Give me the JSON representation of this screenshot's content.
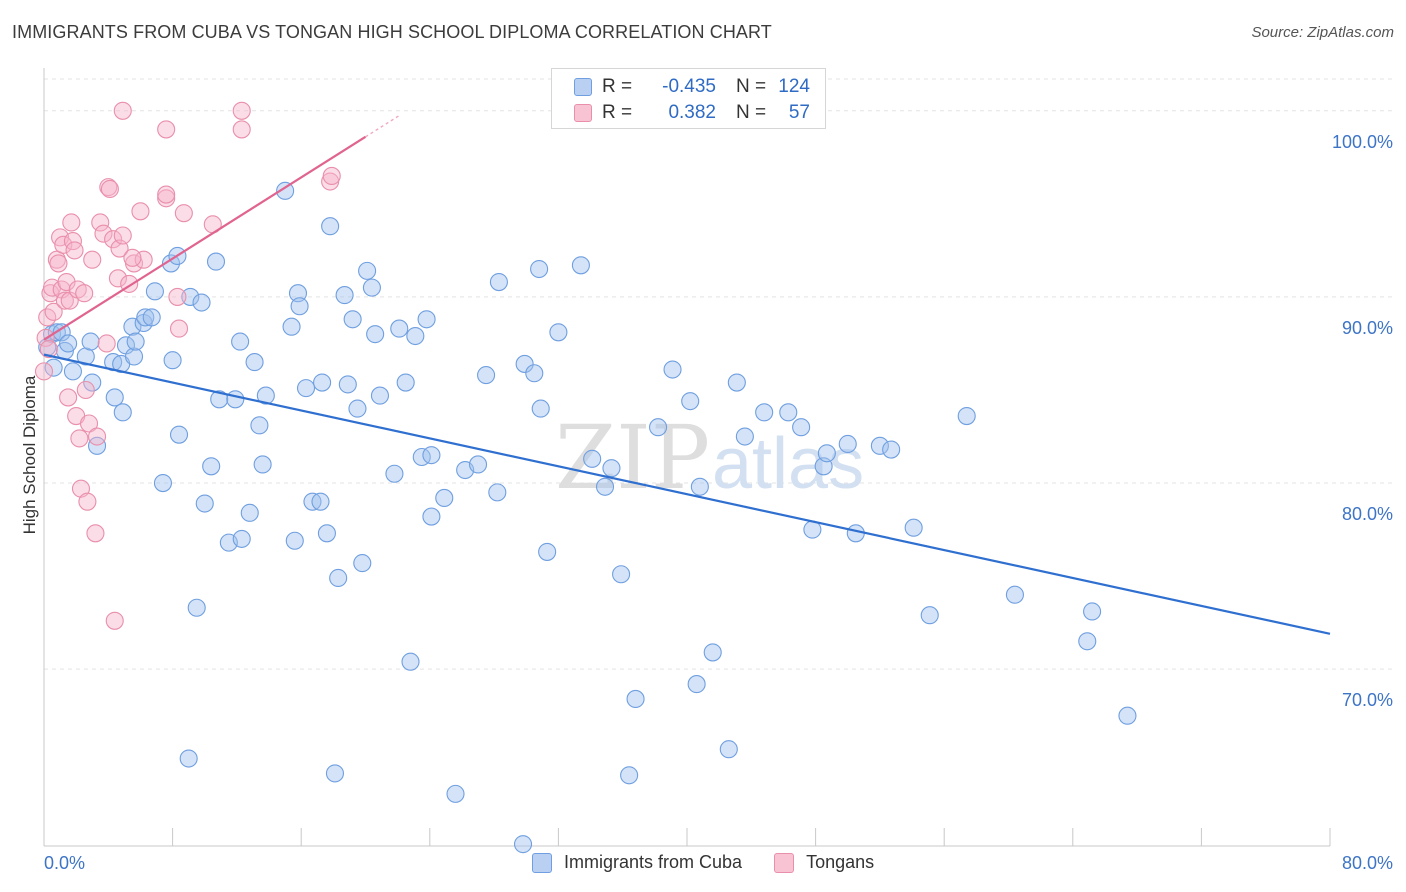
{
  "header": {
    "title": "IMMIGRANTS FROM CUBA VS TONGAN HIGH SCHOOL DIPLOMA CORRELATION CHART",
    "source": "Source: ZipAtlas.com"
  },
  "watermark": {
    "zip": "ZIP",
    "atlas": "atlas"
  },
  "legend": {
    "r_label": "R =",
    "n_label": "N =",
    "rows": [
      {
        "r": "-0.435",
        "n": "124",
        "color": "#6f9fe0",
        "fill": "#b9d0f2"
      },
      {
        "r": "0.382",
        "n": "57",
        "color": "#e98fab",
        "fill": "#f8c4d4"
      }
    ]
  },
  "bottom_legend": [
    {
      "label": "Immigrants from Cuba",
      "color": "#6f9fe0",
      "fill": "#b9d0f2"
    },
    {
      "label": "Tongans",
      "color": "#e98fab",
      "fill": "#f8c4d4"
    }
  ],
  "colors": {
    "blue": "#6f9fe0",
    "blue_line": "#2f6fd0",
    "pink": "#e98fab",
    "pink_line": "#e0648f",
    "tick_text": "#3d74c6"
  },
  "chart_data": {
    "type": "scatter",
    "title": "IMMIGRANTS FROM CUBA VS TONGAN HIGH SCHOOL DIPLOMA CORRELATION CHART",
    "xlabel": "",
    "ylabel": "High School Diploma",
    "xlim": [
      0,
      80
    ],
    "ylim": [
      60.5,
      102.3
    ],
    "x_tick_labels": [
      "0.0%",
      "80.0%"
    ],
    "y_ticks": [
      70,
      80,
      90,
      100
    ],
    "y_tick_labels": [
      "70.0%",
      "80.0%",
      "90.0%",
      "100.0%"
    ],
    "grid": true,
    "legend_position": "top-center",
    "series": [
      {
        "name": "Immigrants from Cuba",
        "trend": {
          "x": [
            0,
            80
          ],
          "y": [
            86.9,
            71.9
          ]
        },
        "points": [
          [
            0.2,
            87.3
          ],
          [
            0.5,
            88
          ],
          [
            0.6,
            86.2
          ],
          [
            0.8,
            88.1
          ],
          [
            1.1,
            88.1
          ],
          [
            1.3,
            87.1
          ],
          [
            1.5,
            87.5
          ],
          [
            1.8,
            86
          ],
          [
            2.6,
            86.8
          ],
          [
            2.9,
            87.6
          ],
          [
            3,
            85.4
          ],
          [
            3.3,
            82
          ],
          [
            4.3,
            86.5
          ],
          [
            4.4,
            84.6
          ],
          [
            4.8,
            86.4
          ],
          [
            4.9,
            83.8
          ],
          [
            5.1,
            87.4
          ],
          [
            5.5,
            88.4
          ],
          [
            5.6,
            86.8
          ],
          [
            5.7,
            87.6
          ],
          [
            6.2,
            88.6
          ],
          [
            6.3,
            88.9
          ],
          [
            6.7,
            88.9
          ],
          [
            6.9,
            90.3
          ],
          [
            7.4,
            80
          ],
          [
            7.9,
            91.8
          ],
          [
            8,
            86.6
          ],
          [
            8.3,
            92.2
          ],
          [
            8.4,
            82.6
          ],
          [
            9.1,
            90
          ],
          [
            9,
            65.2
          ],
          [
            9.5,
            73.3
          ],
          [
            9.8,
            89.7
          ],
          [
            10,
            78.9
          ],
          [
            10.4,
            80.9
          ],
          [
            10.7,
            91.9
          ],
          [
            10.9,
            84.5
          ],
          [
            11.5,
            76.8
          ],
          [
            11.9,
            84.5
          ],
          [
            12.3,
            77
          ],
          [
            12.2,
            87.6
          ],
          [
            12.8,
            78.4
          ],
          [
            13.1,
            86.5
          ],
          [
            13.4,
            83.1
          ],
          [
            13.6,
            81
          ],
          [
            13.8,
            84.7
          ],
          [
            15,
            95.7
          ],
          [
            15.4,
            88.4
          ],
          [
            15.6,
            76.9
          ],
          [
            15.8,
            90.2
          ],
          [
            15.9,
            89.5
          ],
          [
            16.3,
            85.1
          ],
          [
            16.7,
            79
          ],
          [
            17.2,
            79
          ],
          [
            17.3,
            85.4
          ],
          [
            17.6,
            77.3
          ],
          [
            17.8,
            93.8
          ],
          [
            18.1,
            64.4
          ],
          [
            18.3,
            74.9
          ],
          [
            18.7,
            90.1
          ],
          [
            18.9,
            85.3
          ],
          [
            19.2,
            88.8
          ],
          [
            19.5,
            84
          ],
          [
            19.8,
            75.7
          ],
          [
            20.1,
            91.4
          ],
          [
            20.4,
            90.5
          ],
          [
            20.6,
            88
          ],
          [
            20.9,
            84.7
          ],
          [
            21.8,
            80.5
          ],
          [
            22.1,
            88.3
          ],
          [
            22.5,
            85.4
          ],
          [
            22.8,
            70.4
          ],
          [
            23.1,
            87.9
          ],
          [
            23.5,
            81.4
          ],
          [
            23.8,
            88.8
          ],
          [
            24.1,
            78.2
          ],
          [
            24.1,
            81.5
          ],
          [
            24.9,
            79.2
          ],
          [
            25.6,
            63.3
          ],
          [
            26.2,
            80.7
          ],
          [
            27,
            81
          ],
          [
            27.5,
            85.8
          ],
          [
            28.2,
            79.5
          ],
          [
            28.3,
            90.8
          ],
          [
            29.8,
            60.6
          ],
          [
            29.9,
            86.4
          ],
          [
            30.5,
            85.9
          ],
          [
            30.8,
            91.5
          ],
          [
            30.9,
            84
          ],
          [
            31.3,
            76.3
          ],
          [
            32,
            88.1
          ],
          [
            33.4,
            91.7
          ],
          [
            34.1,
            81.3
          ],
          [
            34.9,
            79.8
          ],
          [
            35.3,
            80.8
          ],
          [
            35.9,
            75.1
          ],
          [
            36.4,
            64.3
          ],
          [
            36.8,
            68.4
          ],
          [
            38.2,
            83
          ],
          [
            39.1,
            86.1
          ],
          [
            40.2,
            84.4
          ],
          [
            40.6,
            69.2
          ],
          [
            40.8,
            79.8
          ],
          [
            41.6,
            70.9
          ],
          [
            42.6,
            65.7
          ],
          [
            43.1,
            85.4
          ],
          [
            43.6,
            82.5
          ],
          [
            44.8,
            83.8
          ],
          [
            46.3,
            83.8
          ],
          [
            47.1,
            83
          ],
          [
            47.8,
            77.5
          ],
          [
            48.5,
            80.9
          ],
          [
            48.7,
            81.6
          ],
          [
            50,
            82.1
          ],
          [
            50.5,
            77.3
          ],
          [
            52,
            82
          ],
          [
            52.7,
            81.8
          ],
          [
            54.1,
            77.6
          ],
          [
            55.1,
            72.9
          ],
          [
            57.4,
            83.6
          ],
          [
            60.4,
            74
          ],
          [
            64.9,
            71.5
          ],
          [
            65.2,
            73.1
          ],
          [
            67.4,
            67.5
          ]
        ]
      },
      {
        "name": "Tongans",
        "trend": {
          "x": [
            0,
            20
          ],
          "y": [
            87.7,
            98.6
          ]
        },
        "points": [
          [
            0,
            86
          ],
          [
            0.1,
            87.8
          ],
          [
            0.2,
            88.9
          ],
          [
            0.4,
            90.2
          ],
          [
            0.5,
            90.5
          ],
          [
            0.6,
            89.2
          ],
          [
            0.8,
            92
          ],
          [
            0.9,
            91.8
          ],
          [
            1,
            93.2
          ],
          [
            1.1,
            90.4
          ],
          [
            1.2,
            92.8
          ],
          [
            1.3,
            89.8
          ],
          [
            1.4,
            90.8
          ],
          [
            1.5,
            84.6
          ],
          [
            1.6,
            89.8
          ],
          [
            1.7,
            94
          ],
          [
            1.8,
            93
          ],
          [
            1.9,
            92.5
          ],
          [
            2,
            83.6
          ],
          [
            2.1,
            90.4
          ],
          [
            2.2,
            82.4
          ],
          [
            2.3,
            79.7
          ],
          [
            2.5,
            90.2
          ],
          [
            2.6,
            85
          ],
          [
            2.7,
            79
          ],
          [
            2.8,
            83.2
          ],
          [
            3,
            92
          ],
          [
            3.2,
            77.3
          ],
          [
            3.3,
            82.5
          ],
          [
            3.5,
            94
          ],
          [
            3.7,
            93.4
          ],
          [
            3.9,
            87.5
          ],
          [
            4,
            95.9
          ],
          [
            4.1,
            95.8
          ],
          [
            4.3,
            93.1
          ],
          [
            4.4,
            72.6
          ],
          [
            4.6,
            91
          ],
          [
            4.7,
            92.6
          ],
          [
            4.9,
            93.3
          ],
          [
            5.3,
            90.7
          ],
          [
            5.6,
            91.8
          ],
          [
            6,
            94.6
          ],
          [
            6.2,
            92
          ],
          [
            7.6,
            95.3
          ],
          [
            8.3,
            90
          ],
          [
            8.4,
            88.3
          ],
          [
            8.7,
            94.5
          ],
          [
            10.5,
            93.9
          ],
          [
            12.3,
            100
          ],
          [
            12.3,
            99
          ],
          [
            17.8,
            96.2
          ],
          [
            17.9,
            96.5
          ],
          [
            4.9,
            100
          ],
          [
            7.6,
            99
          ],
          [
            7.6,
            95.5
          ],
          [
            5.5,
            92.1
          ],
          [
            0.3,
            87.2
          ]
        ]
      }
    ]
  }
}
